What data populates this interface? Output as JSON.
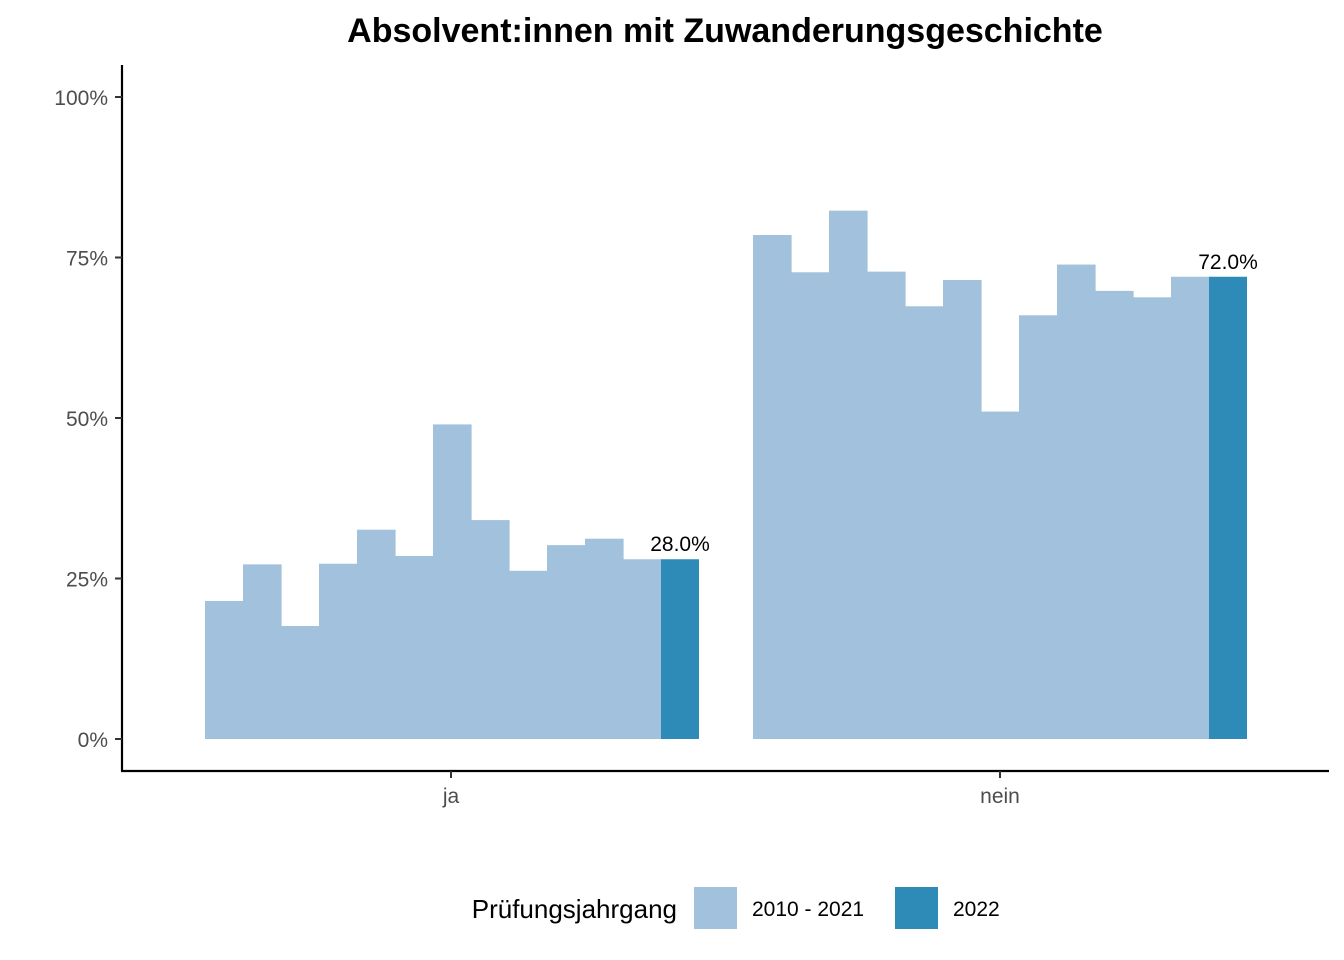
{
  "chart_data": {
    "type": "bar",
    "title": "Absolvent:innen mit Zuwanderungsgeschichte",
    "xlabel": "",
    "ylabel": "",
    "ylim": [
      0,
      1.05
    ],
    "y_ticks": [
      {
        "value": 0,
        "label": "0%"
      },
      {
        "value": 0.25,
        "label": "25%"
      },
      {
        "value": 0.5,
        "label": "50%"
      },
      {
        "value": 0.75,
        "label": "75%"
      },
      {
        "value": 1.0,
        "label": "100%"
      }
    ],
    "categories": [
      "ja",
      "nein"
    ],
    "grid": false,
    "legend": {
      "title": "Prüfungsjahrgang",
      "position": "bottom",
      "entries": [
        {
          "label": "2010 - 2021",
          "color": "#a1c1dd"
        },
        {
          "label": "2022",
          "color": "#2e8bb8"
        }
      ]
    },
    "series": [
      {
        "name": "2010 - 2021",
        "color": "#a1c1dd",
        "values": [
          [
            0.215,
            0.272,
            0.176,
            0.273,
            0.326,
            0.285,
            0.49,
            0.341,
            0.262,
            0.302,
            0.312,
            0.28
          ],
          [
            0.785,
            0.727,
            0.823,
            0.728,
            0.674,
            0.715,
            0.51,
            0.66,
            0.739,
            0.698,
            0.688,
            0.72
          ]
        ]
      },
      {
        "name": "2022",
        "color": "#2e8bb8",
        "values": [
          0.28,
          0.72
        ],
        "labels": [
          "28.0%",
          "72.0%"
        ]
      }
    ]
  }
}
